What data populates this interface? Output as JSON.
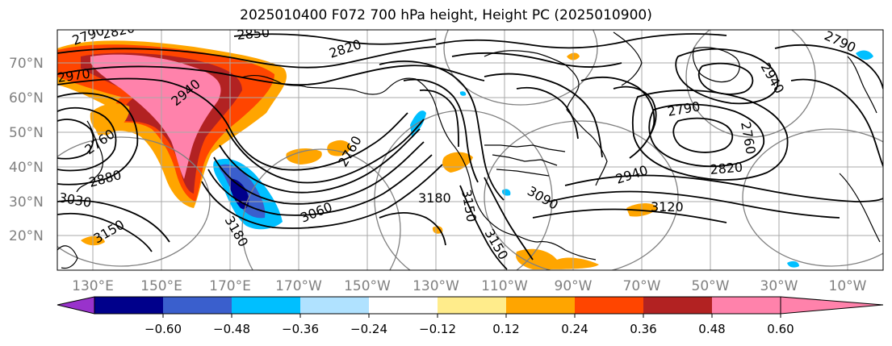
{
  "title": "2025010400 F072 700 hPa height, Height PC (2025010900)",
  "lat_labels": [
    "70°N",
    "60°N",
    "50°N",
    "40°N",
    "30°N",
    "20°N"
  ],
  "lon_labels": [
    "130°E",
    "150°E",
    "170°E",
    "170°W",
    "150°W",
    "130°W",
    "110°W",
    "90°W",
    "70°W",
    "50°W",
    "30°W",
    "10°W"
  ],
  "colorbar": {
    "tick_labels": [
      "−0.60",
      "−0.48",
      "−0.36",
      "−0.24",
      "−0.12",
      "0.12",
      "0.24",
      "0.36",
      "0.48",
      "0.60"
    ],
    "colors": [
      "#9932cc",
      "#00008b",
      "#3a5fcd",
      "#00bfff",
      "#b0e2ff",
      "#ffffff",
      "#ffec8b",
      "#ffa500",
      "#ff4500",
      "#b22222",
      "#ff82ab"
    ]
  },
  "contour_labels": [
    "2790",
    "2820",
    "2970",
    "2850",
    "2820",
    "2940",
    "2760",
    "2880",
    "3030",
    "3150",
    "3180",
    "3060",
    "2760",
    "3180",
    "3150",
    "3090",
    "3150",
    "2940",
    "3120",
    "2820",
    "2790",
    "2760",
    "2940",
    "2790"
  ],
  "legend_colors": {
    "positive_high": "#ff82ab",
    "positive_strong": "#b22222",
    "positive": "#ff4500",
    "positive_weak": "#ffa500",
    "negative": "#00bfff",
    "negative_strong": "#3a5fcd",
    "negative_extreme": "#00008b"
  }
}
